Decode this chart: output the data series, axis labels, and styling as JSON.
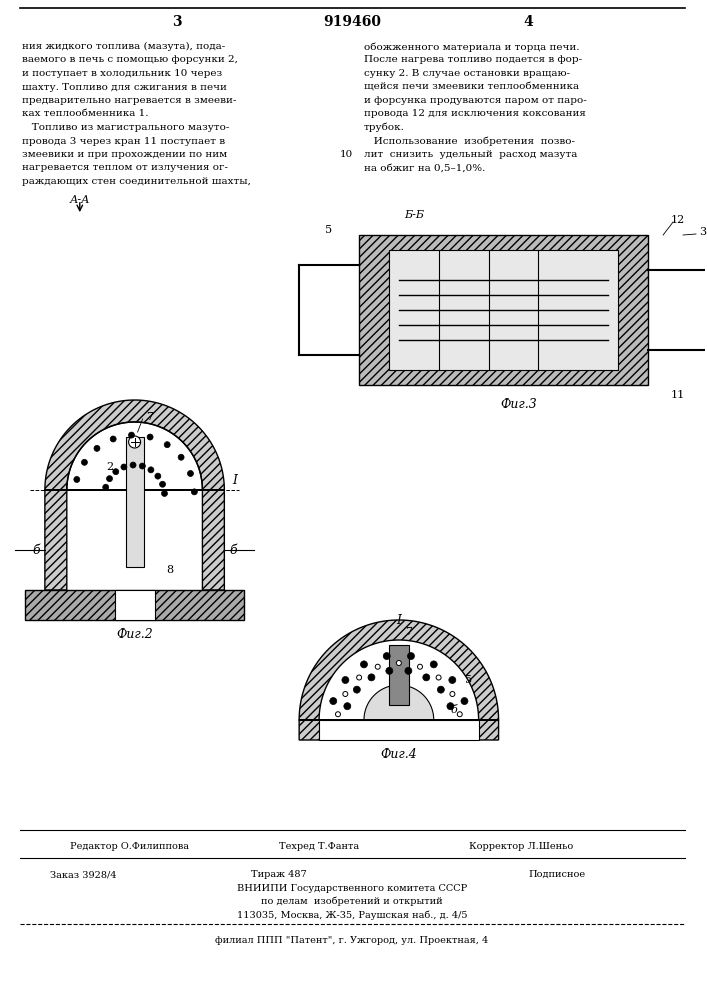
{
  "page_num_left": "3",
  "patent_number": "919460",
  "page_num_right": "4",
  "text_left": [
    "ния жидкого топлива (мазута), пода-",
    "ваемого в печь с помощью форсунки 2,",
    "и поступает в холодильник 10 через",
    "шахту. Топливо для сжигания в печи",
    "предварительно нагревается в змееви-",
    "ках теплообменника 1.",
    "   Топливо из магистрального мазуто-",
    "провода 3 через кран 11 поступает в",
    "змеевики и при прохождении по ним",
    "нагревается теплом от излучения ог-",
    "раждающих стен соединительной шахты,"
  ],
  "text_right": [
    "обожженного материала и торца печи.",
    "После нагрева топливо подается в фор-",
    "сунку 2. В случае остановки вращаю-",
    "щейся печи змеевики теплообменника",
    "и форсунка продуваются паром от паро-",
    "провода 12 для исключения коксования",
    "трубок.",
    "   Использование  изобретения  позво-",
    "лит  снизить  удельный  расход мазута",
    "на обжиг на 0,5–1,0%."
  ],
  "line_number_right": "10",
  "fig2_label": "Фиг.2",
  "fig3_label": "Фиг.3",
  "fig4_label": "Фиг.4",
  "section_label_aa": "А-А",
  "section_label_bb": "Б-Б",
  "section_label_i_top": "I",
  "section_label_i_bottom": "I",
  "section_label_b_left": "б",
  "section_label_b_right": "б",
  "bottom_editor": "Редактор О.Филиппова",
  "bottom_tech": "Техред Т.Фанта",
  "bottom_corrector": "Корректор Л.Шеньо",
  "bottom_order": "Заказ 3928/4",
  "bottom_edition": "Тираж 487",
  "bottom_subscription": "Подписное",
  "bottom_org1": "ВНИИПИ Государственного комитета СССР",
  "bottom_org2": "по делам  изобретений и открытий",
  "bottom_address": "113035, Москва, Ж-35, Раушская наб., д. 4/5",
  "bottom_branch": "филиал ППП \"Патент\", г. Ужгород, ул. Проектная, 4",
  "bg_color": "#ffffff",
  "text_color": "#000000",
  "hatch_color": "#555555",
  "line_color": "#000000"
}
